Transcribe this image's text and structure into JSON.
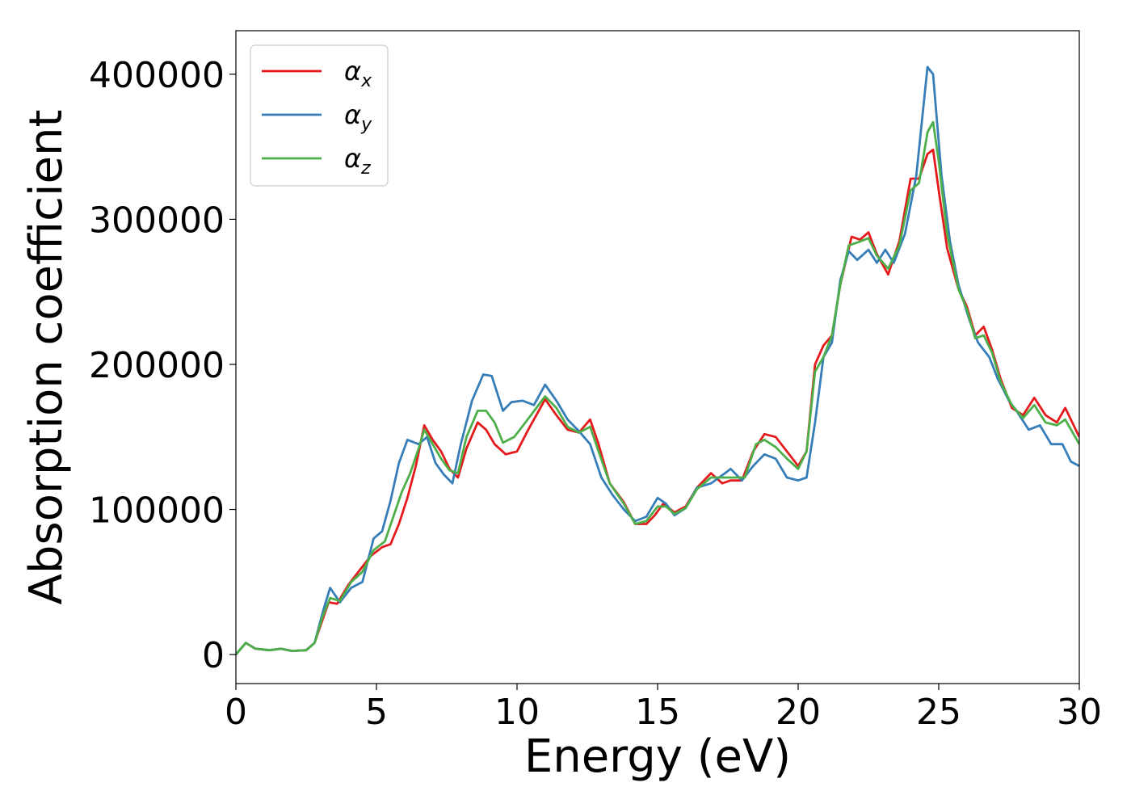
{
  "chart_data": {
    "type": "line",
    "title": "",
    "xlabel": "Energy (eV)",
    "ylabel": "Absorption coefficient",
    "xlim": [
      0,
      30
    ],
    "ylim": [
      -20000,
      430000
    ],
    "xticks": [
      0,
      5,
      10,
      15,
      20,
      25,
      30
    ],
    "xtick_labels": [
      "0",
      "5",
      "10",
      "15",
      "20",
      "25",
      "30"
    ],
    "yticks": [
      0,
      100000,
      200000,
      300000,
      400000
    ],
    "ytick_labels": [
      "0",
      "100000",
      "200000",
      "300000",
      "400000"
    ],
    "grid": false,
    "legend_position": "top-left",
    "series": [
      {
        "name": "α",
        "subscript": "x",
        "color": "#e41a1c",
        "points": [
          [
            0,
            0
          ],
          [
            0.35,
            8000
          ],
          [
            0.7,
            4000
          ],
          [
            1.2,
            3000
          ],
          [
            1.6,
            4000
          ],
          [
            2.0,
            2500
          ],
          [
            2.5,
            3000
          ],
          [
            2.8,
            8000
          ],
          [
            3.1,
            25000
          ],
          [
            3.3,
            36000
          ],
          [
            3.6,
            35000
          ],
          [
            4.0,
            48000
          ],
          [
            4.4,
            58000
          ],
          [
            4.8,
            68000
          ],
          [
            5.2,
            74000
          ],
          [
            5.5,
            76000
          ],
          [
            5.8,
            90000
          ],
          [
            6.1,
            108000
          ],
          [
            6.4,
            130000
          ],
          [
            6.7,
            158000
          ],
          [
            7.0,
            148000
          ],
          [
            7.3,
            140000
          ],
          [
            7.6,
            128000
          ],
          [
            7.9,
            122000
          ],
          [
            8.2,
            142000
          ],
          [
            8.6,
            160000
          ],
          [
            8.9,
            155000
          ],
          [
            9.2,
            145000
          ],
          [
            9.6,
            138000
          ],
          [
            10.0,
            140000
          ],
          [
            10.4,
            155000
          ],
          [
            11.0,
            176000
          ],
          [
            11.4,
            165000
          ],
          [
            11.8,
            155000
          ],
          [
            12.2,
            153000
          ],
          [
            12.6,
            162000
          ],
          [
            12.9,
            145000
          ],
          [
            13.3,
            118000
          ],
          [
            13.8,
            105000
          ],
          [
            14.2,
            90000
          ],
          [
            14.6,
            90000
          ],
          [
            14.9,
            96000
          ],
          [
            15.2,
            104000
          ],
          [
            15.6,
            98000
          ],
          [
            16.0,
            102000
          ],
          [
            16.4,
            115000
          ],
          [
            16.9,
            125000
          ],
          [
            17.3,
            118000
          ],
          [
            17.6,
            120000
          ],
          [
            18.0,
            120000
          ],
          [
            18.4,
            140000
          ],
          [
            18.8,
            152000
          ],
          [
            19.2,
            150000
          ],
          [
            19.6,
            140000
          ],
          [
            20.0,
            130000
          ],
          [
            20.3,
            140000
          ],
          [
            20.6,
            200000
          ],
          [
            20.9,
            213000
          ],
          [
            21.2,
            220000
          ],
          [
            21.5,
            255000
          ],
          [
            21.9,
            288000
          ],
          [
            22.2,
            286000
          ],
          [
            22.5,
            291000
          ],
          [
            22.8,
            276000
          ],
          [
            23.2,
            262000
          ],
          [
            23.6,
            285000
          ],
          [
            24.0,
            328000
          ],
          [
            24.3,
            328000
          ],
          [
            24.6,
            345000
          ],
          [
            24.8,
            348000
          ],
          [
            25.0,
            320000
          ],
          [
            25.3,
            280000
          ],
          [
            25.7,
            252000
          ],
          [
            26.0,
            240000
          ],
          [
            26.3,
            220000
          ],
          [
            26.6,
            226000
          ],
          [
            26.9,
            210000
          ],
          [
            27.2,
            190000
          ],
          [
            27.6,
            170000
          ],
          [
            28.0,
            165000
          ],
          [
            28.4,
            177000
          ],
          [
            28.8,
            165000
          ],
          [
            29.2,
            160000
          ],
          [
            29.5,
            170000
          ],
          [
            30.0,
            150000
          ]
        ]
      },
      {
        "name": "α",
        "subscript": "y",
        "color": "#377eb8",
        "points": [
          [
            0,
            0
          ],
          [
            0.35,
            8000
          ],
          [
            0.7,
            4000
          ],
          [
            1.2,
            3000
          ],
          [
            1.6,
            4000
          ],
          [
            2.0,
            2500
          ],
          [
            2.5,
            3000
          ],
          [
            2.8,
            8000
          ],
          [
            3.1,
            30000
          ],
          [
            3.35,
            46000
          ],
          [
            3.7,
            36000
          ],
          [
            4.1,
            46000
          ],
          [
            4.5,
            50000
          ],
          [
            4.9,
            80000
          ],
          [
            5.2,
            85000
          ],
          [
            5.5,
            106000
          ],
          [
            5.8,
            132000
          ],
          [
            6.1,
            148000
          ],
          [
            6.5,
            145000
          ],
          [
            6.8,
            150000
          ],
          [
            7.1,
            132000
          ],
          [
            7.4,
            124000
          ],
          [
            7.7,
            118000
          ],
          [
            8.0,
            145000
          ],
          [
            8.4,
            175000
          ],
          [
            8.8,
            193000
          ],
          [
            9.1,
            192000
          ],
          [
            9.5,
            168000
          ],
          [
            9.8,
            174000
          ],
          [
            10.2,
            175000
          ],
          [
            10.6,
            172000
          ],
          [
            11.0,
            186000
          ],
          [
            11.4,
            175000
          ],
          [
            11.8,
            162000
          ],
          [
            12.2,
            154000
          ],
          [
            12.6,
            145000
          ],
          [
            13.0,
            122000
          ],
          [
            13.4,
            110000
          ],
          [
            13.8,
            100000
          ],
          [
            14.2,
            92000
          ],
          [
            14.6,
            95000
          ],
          [
            15.0,
            108000
          ],
          [
            15.3,
            104000
          ],
          [
            15.6,
            96000
          ],
          [
            16.0,
            101000
          ],
          [
            16.4,
            115000
          ],
          [
            16.9,
            118000
          ],
          [
            17.4,
            125000
          ],
          [
            17.6,
            128000
          ],
          [
            18.0,
            120000
          ],
          [
            18.4,
            130000
          ],
          [
            18.8,
            138000
          ],
          [
            19.2,
            135000
          ],
          [
            19.6,
            122000
          ],
          [
            20.0,
            120000
          ],
          [
            20.3,
            122000
          ],
          [
            20.6,
            160000
          ],
          [
            20.9,
            205000
          ],
          [
            21.2,
            215000
          ],
          [
            21.5,
            258000
          ],
          [
            21.8,
            278000
          ],
          [
            22.1,
            272000
          ],
          [
            22.5,
            279000
          ],
          [
            22.8,
            270000
          ],
          [
            23.1,
            279000
          ],
          [
            23.4,
            270000
          ],
          [
            23.8,
            290000
          ],
          [
            24.2,
            330000
          ],
          [
            24.6,
            405000
          ],
          [
            24.8,
            400000
          ],
          [
            25.1,
            330000
          ],
          [
            25.4,
            285000
          ],
          [
            25.7,
            255000
          ],
          [
            26.1,
            230000
          ],
          [
            26.4,
            215000
          ],
          [
            26.8,
            205000
          ],
          [
            27.1,
            190000
          ],
          [
            27.5,
            175000
          ],
          [
            27.8,
            167000
          ],
          [
            28.2,
            155000
          ],
          [
            28.6,
            158000
          ],
          [
            29.0,
            145000
          ],
          [
            29.4,
            145000
          ],
          [
            29.7,
            133000
          ],
          [
            30.0,
            130000
          ]
        ]
      },
      {
        "name": "α",
        "subscript": "z",
        "color": "#4daf4a",
        "points": [
          [
            0,
            0
          ],
          [
            0.35,
            8000
          ],
          [
            0.7,
            4000
          ],
          [
            1.2,
            3000
          ],
          [
            1.6,
            4000
          ],
          [
            2.0,
            2500
          ],
          [
            2.5,
            3000
          ],
          [
            2.8,
            8000
          ],
          [
            3.1,
            27000
          ],
          [
            3.35,
            39000
          ],
          [
            3.7,
            37000
          ],
          [
            4.1,
            50000
          ],
          [
            4.5,
            57000
          ],
          [
            4.9,
            72000
          ],
          [
            5.3,
            78000
          ],
          [
            5.6,
            95000
          ],
          [
            5.9,
            112000
          ],
          [
            6.2,
            125000
          ],
          [
            6.5,
            142000
          ],
          [
            6.7,
            155000
          ],
          [
            7.0,
            145000
          ],
          [
            7.3,
            135000
          ],
          [
            7.6,
            127000
          ],
          [
            7.9,
            125000
          ],
          [
            8.2,
            150000
          ],
          [
            8.6,
            168000
          ],
          [
            8.9,
            168000
          ],
          [
            9.2,
            160000
          ],
          [
            9.5,
            146000
          ],
          [
            9.9,
            150000
          ],
          [
            10.3,
            160000
          ],
          [
            11.0,
            178000
          ],
          [
            11.4,
            170000
          ],
          [
            11.8,
            157000
          ],
          [
            12.2,
            153000
          ],
          [
            12.6,
            157000
          ],
          [
            12.9,
            140000
          ],
          [
            13.3,
            118000
          ],
          [
            13.8,
            104000
          ],
          [
            14.2,
            90000
          ],
          [
            14.6,
            92000
          ],
          [
            15.0,
            102000
          ],
          [
            15.3,
            102000
          ],
          [
            15.6,
            97000
          ],
          [
            16.0,
            101000
          ],
          [
            16.4,
            114000
          ],
          [
            16.9,
            122000
          ],
          [
            17.4,
            122000
          ],
          [
            17.8,
            122000
          ],
          [
            18.1,
            122000
          ],
          [
            18.5,
            145000
          ],
          [
            18.8,
            148000
          ],
          [
            19.2,
            143000
          ],
          [
            19.6,
            135000
          ],
          [
            20.0,
            128000
          ],
          [
            20.3,
            140000
          ],
          [
            20.6,
            195000
          ],
          [
            20.9,
            205000
          ],
          [
            21.2,
            220000
          ],
          [
            21.5,
            255000
          ],
          [
            21.8,
            282000
          ],
          [
            22.1,
            284000
          ],
          [
            22.5,
            287000
          ],
          [
            22.8,
            275000
          ],
          [
            23.2,
            266000
          ],
          [
            23.6,
            282000
          ],
          [
            24.0,
            320000
          ],
          [
            24.3,
            325000
          ],
          [
            24.6,
            360000
          ],
          [
            24.8,
            367000
          ],
          [
            25.0,
            340000
          ],
          [
            25.3,
            290000
          ],
          [
            25.7,
            252000
          ],
          [
            26.0,
            238000
          ],
          [
            26.3,
            218000
          ],
          [
            26.6,
            220000
          ],
          [
            26.9,
            208000
          ],
          [
            27.2,
            188000
          ],
          [
            27.6,
            172000
          ],
          [
            28.0,
            163000
          ],
          [
            28.4,
            172000
          ],
          [
            28.8,
            160000
          ],
          [
            29.2,
            158000
          ],
          [
            29.5,
            162000
          ],
          [
            30.0,
            145000
          ]
        ]
      }
    ]
  }
}
